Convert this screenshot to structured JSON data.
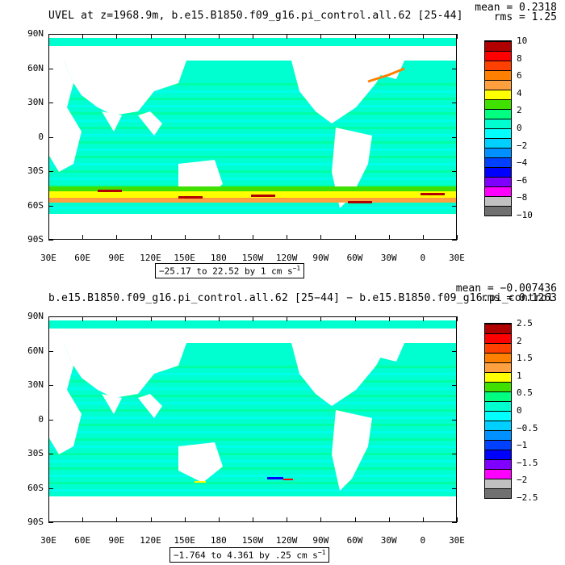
{
  "chart_data": [
    {
      "type": "heatmap",
      "title": "UVEL at z=1968.9m, b.e15.B1850.f09_g16.pi_control.all.62 [25-44]",
      "stats": {
        "mean": "mean = 0.2318",
        "rms": "rms = 1.25"
      },
      "x_ticks": [
        "30E",
        "60E",
        "90E",
        "120E",
        "150E",
        "180",
        "150W",
        "120W",
        "90W",
        "60W",
        "30W",
        "0",
        "30E"
      ],
      "y_ticks": [
        "90N",
        "60N",
        "30N",
        "0",
        "30S",
        "60S",
        "90S"
      ],
      "range_text": {
        "prefix": "−25.17 to 22.52 by 1 cm s",
        "exponent": "−1"
      },
      "colorbar_labels": [
        "10",
        "8",
        "6",
        "4",
        "2",
        "0",
        "−2",
        "−4",
        "−6",
        "−8",
        "−10"
      ],
      "colors": [
        "#b00000",
        "#ff0000",
        "#ff4000",
        "#ff8000",
        "#ffa040",
        "#ffff00",
        "#40e000",
        "#00ff80",
        "#00ffd0",
        "#00ffff",
        "#00d0ff",
        "#0090ff",
        "#0040ff",
        "#0000ff",
        "#8000ff",
        "#ff00ff",
        "#c0c0c0",
        "#707070"
      ]
    },
    {
      "type": "heatmap",
      "title": "b.e15.B1850.f09_g16.pi_control.all.62 [25−44] − b.e15.B1850.f09_g16.pi_control",
      "stats": {
        "mean": "mean = −0.007436",
        "rms": "rms = 0.1263"
      },
      "x_ticks": [
        "30E",
        "60E",
        "90E",
        "120E",
        "150E",
        "180",
        "150W",
        "120W",
        "90W",
        "60W",
        "30W",
        "0",
        "30E"
      ],
      "y_ticks": [
        "90N",
        "60N",
        "30N",
        "0",
        "30S",
        "60S",
        "90S"
      ],
      "range_text": {
        "prefix": "−1.764 to 4.361 by .25 cm s",
        "exponent": "−1"
      },
      "colorbar_labels": [
        "2.5",
        "2",
        "1.5",
        "1",
        "0.5",
        "0",
        "−0.5",
        "−1",
        "−1.5",
        "−2",
        "−2.5"
      ],
      "colors": [
        "#b00000",
        "#ff0000",
        "#ff4000",
        "#ff8000",
        "#ffa040",
        "#ffff00",
        "#40e000",
        "#00ff80",
        "#00ffd0",
        "#00ffff",
        "#00d0ff",
        "#0090ff",
        "#0040ff",
        "#0000ff",
        "#8000ff",
        "#ff00ff",
        "#c0c0c0",
        "#707070"
      ]
    }
  ]
}
